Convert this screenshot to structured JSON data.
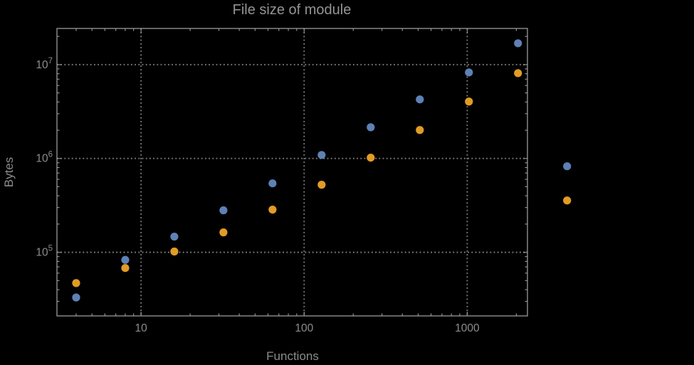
{
  "chart_data": {
    "type": "scatter",
    "title": "File size of module",
    "xlabel": "Functions",
    "ylabel": "Bytes",
    "xscale": "log",
    "yscale": "log",
    "grid": "dotted",
    "legend": "none",
    "xlim": [
      3.05,
      2340
    ],
    "ylim": [
      21000,
      24300000
    ],
    "x": [
      4,
      8,
      16,
      32,
      64,
      128,
      256,
      512,
      1024,
      2048,
      4096
    ],
    "series": [
      {
        "name": "blue",
        "color": "#5e81b5",
        "values": [
          33000,
          83000,
          147000,
          280000,
          543000,
          1090000,
          2150000,
          4260000,
          8260000,
          16900000,
          826000
        ]
      },
      {
        "name": "orange",
        "color": "#e19c24",
        "values": [
          47000,
          68000,
          102000,
          163000,
          285000,
          525000,
          1020000,
          2010000,
          4040000,
          8110000,
          357000
        ]
      }
    ],
    "x_ticks": [
      {
        "value": 10,
        "label": "10"
      },
      {
        "value": 100,
        "label": "100"
      },
      {
        "value": 1000,
        "label": "1000"
      }
    ],
    "y_ticks": [
      {
        "value": 100000,
        "base": "10",
        "exp": "5"
      },
      {
        "value": 1000000,
        "base": "10",
        "exp": "6"
      },
      {
        "value": 10000000,
        "base": "10",
        "exp": "7"
      }
    ]
  },
  "style": {
    "background": "#000000",
    "frame_color": "#9a9a9a",
    "grid_color": "#7e7e7e",
    "tick_label_color": "#8c8c8c",
    "title_color": "#949494",
    "axis_label_color": "#8c8c8c"
  }
}
